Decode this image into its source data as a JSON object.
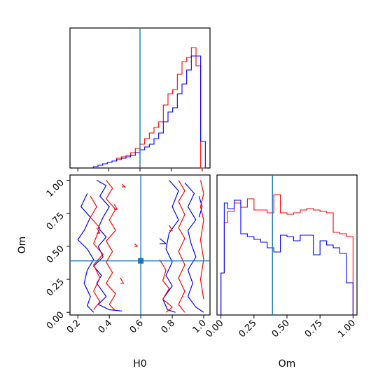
{
  "chart_data": [
    {
      "type": "histogram",
      "panel": "H0 marginal",
      "xlabel": "",
      "ylabel": "",
      "xlim": [
        0.15,
        1.05
      ],
      "ylim": [
        0,
        1.0
      ],
      "show_yticks": false,
      "truth": 0.6,
      "bin_edges": [
        0.3,
        0.33,
        0.36,
        0.39,
        0.42,
        0.45,
        0.48,
        0.51,
        0.54,
        0.57,
        0.6,
        0.63,
        0.66,
        0.69,
        0.72,
        0.75,
        0.78,
        0.81,
        0.84,
        0.87,
        0.9,
        0.93,
        0.96,
        0.99,
        1.02
      ],
      "series": [
        {
          "color": "#ff0000",
          "values": [
            0.01,
            0.02,
            0.03,
            0.04,
            0.05,
            0.07,
            0.08,
            0.09,
            0.11,
            0.14,
            0.17,
            0.21,
            0.25,
            0.29,
            0.33,
            0.45,
            0.53,
            0.56,
            0.67,
            0.76,
            0.79,
            0.86,
            0.73,
            0.0
          ]
        },
        {
          "color": "#0000ff",
          "values": [
            0.01,
            0.02,
            0.03,
            0.04,
            0.05,
            0.06,
            0.07,
            0.08,
            0.09,
            0.11,
            0.13,
            0.15,
            0.17,
            0.21,
            0.25,
            0.33,
            0.4,
            0.43,
            0.53,
            0.6,
            0.7,
            0.8,
            0.8,
            0.19
          ]
        }
      ]
    },
    {
      "type": "contour",
      "panel": "H0 vs Om",
      "xlabel": "H0",
      "ylabel": "Om",
      "xlim": [
        0.15,
        1.04
      ],
      "ylim": [
        -0.02,
        1.04
      ],
      "xticks": [
        "0.2",
        "0.4",
        "0.6",
        "0.8",
        "1.0"
      ],
      "yticks": [
        "0.00",
        "0.25",
        "0.50",
        "0.75",
        "1.00"
      ],
      "truth": {
        "x": 0.6,
        "y": 0.39
      },
      "series": [
        {
          "color": "#0000ff",
          "contours": [
            [
              [
                0.32,
                1.0
              ],
              [
                0.38,
                0.96
              ],
              [
                0.34,
                0.88
              ],
              [
                0.4,
                0.8
              ],
              [
                0.36,
                0.72
              ],
              [
                0.33,
                0.64
              ],
              [
                0.38,
                0.57
              ],
              [
                0.33,
                0.5
              ],
              [
                0.36,
                0.42
              ],
              [
                0.3,
                0.35
              ],
              [
                0.35,
                0.28
              ],
              [
                0.32,
                0.22
              ],
              [
                0.38,
                0.12
              ],
              [
                0.33,
                0.06
              ],
              [
                0.4,
                0.02
              ],
              [
                0.48,
                0.01
              ]
            ],
            [
              [
                0.26,
                0.9
              ],
              [
                0.22,
                0.8
              ],
              [
                0.28,
                0.72
              ],
              [
                0.24,
                0.62
              ],
              [
                0.2,
                0.55
              ],
              [
                0.26,
                0.48
              ],
              [
                0.3,
                0.4
              ],
              [
                0.26,
                0.32
              ],
              [
                0.24,
                0.22
              ],
              [
                0.28,
                0.12
              ],
              [
                0.26,
                0.05
              ],
              [
                0.3,
                0.0
              ]
            ],
            [
              [
                0.78,
                1.0
              ],
              [
                0.84,
                0.92
              ],
              [
                0.8,
                0.8
              ],
              [
                0.84,
                0.7
              ],
              [
                0.78,
                0.6
              ],
              [
                0.76,
                0.48
              ],
              [
                0.8,
                0.38
              ],
              [
                0.76,
                0.28
              ],
              [
                0.8,
                0.2
              ],
              [
                0.74,
                0.1
              ],
              [
                0.77,
                0.02
              ],
              [
                0.82,
                0.0
              ]
            ],
            [
              [
                0.88,
                0.98
              ],
              [
                0.94,
                0.9
              ],
              [
                0.9,
                0.8
              ],
              [
                0.95,
                0.7
              ],
              [
                0.9,
                0.62
              ],
              [
                0.92,
                0.52
              ],
              [
                0.95,
                0.42
              ],
              [
                0.9,
                0.32
              ],
              [
                0.93,
                0.22
              ],
              [
                0.9,
                0.12
              ],
              [
                0.95,
                0.04
              ],
              [
                1.0,
                0.0
              ]
            ],
            [
              [
                0.72,
                0.56
              ],
              [
                0.76,
                0.52
              ],
              [
                0.72,
                0.52
              ]
            ],
            [
              [
                0.97,
                0.88
              ],
              [
                0.99,
                0.8
              ],
              [
                0.97,
                0.72
              ]
            ]
          ]
        },
        {
          "color": "#ff0000",
          "contours": [
            [
              [
                0.38,
                1.0
              ],
              [
                0.42,
                0.94
              ],
              [
                0.38,
                0.86
              ],
              [
                0.44,
                0.78
              ],
              [
                0.4,
                0.7
              ],
              [
                0.44,
                0.62
              ],
              [
                0.38,
                0.54
              ],
              [
                0.42,
                0.46
              ],
              [
                0.38,
                0.38
              ],
              [
                0.42,
                0.3
              ],
              [
                0.38,
                0.22
              ],
              [
                0.44,
                0.14
              ],
              [
                0.4,
                0.06
              ],
              [
                0.44,
                0.01
              ]
            ],
            [
              [
                0.28,
                0.88
              ],
              [
                0.32,
                0.8
              ],
              [
                0.28,
                0.72
              ],
              [
                0.34,
                0.64
              ],
              [
                0.3,
                0.52
              ],
              [
                0.36,
                0.44
              ],
              [
                0.3,
                0.36
              ],
              [
                0.34,
                0.26
              ],
              [
                0.3,
                0.16
              ],
              [
                0.34,
                0.08
              ],
              [
                0.3,
                0.02
              ]
            ],
            [
              [
                0.84,
                1.0
              ],
              [
                0.88,
                0.92
              ],
              [
                0.84,
                0.84
              ],
              [
                0.88,
                0.74
              ],
              [
                0.84,
                0.64
              ],
              [
                0.88,
                0.56
              ],
              [
                0.84,
                0.46
              ],
              [
                0.88,
                0.36
              ],
              [
                0.84,
                0.26
              ],
              [
                0.88,
                0.16
              ],
              [
                0.84,
                0.06
              ],
              [
                0.88,
                0.0
              ]
            ],
            [
              [
                0.72,
                0.4
              ],
              [
                0.76,
                0.32
              ],
              [
                0.74,
                0.24
              ],
              [
                0.78,
                0.18
              ],
              [
                0.74,
                0.1
              ],
              [
                0.8,
                0.04
              ],
              [
                0.76,
                0.0
              ]
            ],
            [
              [
                0.98,
                1.0
              ],
              [
                1.0,
                0.9
              ],
              [
                0.98,
                0.8
              ],
              [
                1.0,
                0.7
              ],
              [
                0.98,
                0.55
              ],
              [
                1.0,
                0.4
              ],
              [
                0.98,
                0.25
              ],
              [
                1.0,
                0.1
              ]
            ],
            [
              [
                0.32,
                0.64
              ],
              [
                0.34,
                0.6
              ],
              [
                0.32,
                0.6
              ]
            ],
            [
              [
                0.43,
                0.82
              ],
              [
                0.45,
                0.78
              ],
              [
                0.43,
                0.78
              ]
            ],
            [
              [
                0.78,
                0.66
              ],
              [
                0.8,
                0.62
              ],
              [
                0.78,
                0.62
              ]
            ],
            [
              [
                0.47,
                0.26
              ],
              [
                0.49,
                0.22
              ],
              [
                0.47,
                0.22
              ]
            ],
            [
              [
                0.48,
                0.97
              ],
              [
                0.5,
                0.95
              ],
              [
                0.48,
                0.95
              ]
            ],
            [
              [
                0.56,
                0.52
              ],
              [
                0.58,
                0.5
              ],
              [
                0.56,
                0.5
              ]
            ]
          ]
        }
      ]
    },
    {
      "type": "histogram",
      "panel": "Om marginal",
      "xlabel": "Om",
      "ylabel": "",
      "xlim": [
        -0.03,
        1.03
      ],
      "ylim": [
        0,
        1.0
      ],
      "show_yticks": false,
      "xticks": [
        "0.00",
        "0.25",
        "0.50",
        "0.75",
        "1.00"
      ],
      "truth": 0.39,
      "bin_edges": [
        0.0,
        0.025,
        0.05,
        0.1,
        0.15,
        0.2,
        0.25,
        0.3,
        0.35,
        0.4,
        0.45,
        0.5,
        0.55,
        0.6,
        0.65,
        0.7,
        0.75,
        0.8,
        0.85,
        0.9,
        0.95,
        1.0
      ],
      "series": [
        {
          "color": "#ff0000",
          "values": [
            0.3,
            0.66,
            0.74,
            0.8,
            0.77,
            0.83,
            0.75,
            0.75,
            0.73,
            0.86,
            0.73,
            0.72,
            0.73,
            0.75,
            0.76,
            0.75,
            0.74,
            0.73,
            0.59,
            0.58,
            0.56
          ]
        },
        {
          "color": "#0000ff",
          "values": [
            0.3,
            0.8,
            0.76,
            0.82,
            0.58,
            0.56,
            0.54,
            0.52,
            0.48,
            0.45,
            0.57,
            0.56,
            0.53,
            0.57,
            0.57,
            0.43,
            0.53,
            0.5,
            0.48,
            0.44,
            0.23
          ]
        }
      ]
    }
  ],
  "colors": {
    "truth": "#1f77b4"
  }
}
